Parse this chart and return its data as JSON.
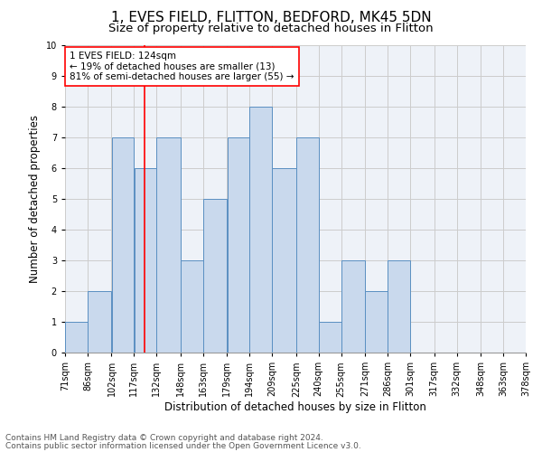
{
  "title": "1, EVES FIELD, FLITTON, BEDFORD, MK45 5DN",
  "subtitle": "Size of property relative to detached houses in Flitton",
  "xlabel": "Distribution of detached houses by size in Flitton",
  "ylabel": "Number of detached properties",
  "footnote1": "Contains HM Land Registry data © Crown copyright and database right 2024.",
  "footnote2": "Contains public sector information licensed under the Open Government Licence v3.0.",
  "bin_labels": [
    "71sqm",
    "86sqm",
    "102sqm",
    "117sqm",
    "132sqm",
    "148sqm",
    "163sqm",
    "179sqm",
    "194sqm",
    "209sqm",
    "225sqm",
    "240sqm",
    "255sqm",
    "271sqm",
    "286sqm",
    "301sqm",
    "317sqm",
    "332sqm",
    "348sqm",
    "363sqm",
    "378sqm"
  ],
  "bar_values": [
    1,
    2,
    7,
    6,
    7,
    3,
    5,
    7,
    8,
    6,
    7,
    1,
    3,
    2,
    3,
    0,
    0,
    0,
    0,
    0
  ],
  "bar_color": "#c9d9ed",
  "bar_edge_color": "#5a8fc2",
  "grid_color": "#cccccc",
  "vline_x": 124,
  "vline_color": "red",
  "annotation_text": "1 EVES FIELD: 124sqm\n← 19% of detached houses are smaller (13)\n81% of semi-detached houses are larger (55) →",
  "annotation_box_color": "white",
  "annotation_box_edge": "red",
  "ylim": [
    0,
    10
  ],
  "bin_edges": [
    71,
    86,
    102,
    117,
    132,
    148,
    163,
    179,
    194,
    209,
    225,
    240,
    255,
    271,
    286,
    301,
    317,
    332,
    348,
    363,
    378
  ],
  "title_fontsize": 11,
  "subtitle_fontsize": 9.5,
  "axis_label_fontsize": 8.5,
  "tick_fontsize": 7,
  "annotation_fontsize": 7.5,
  "footnote_fontsize": 6.5,
  "background_color": "#eef2f8"
}
